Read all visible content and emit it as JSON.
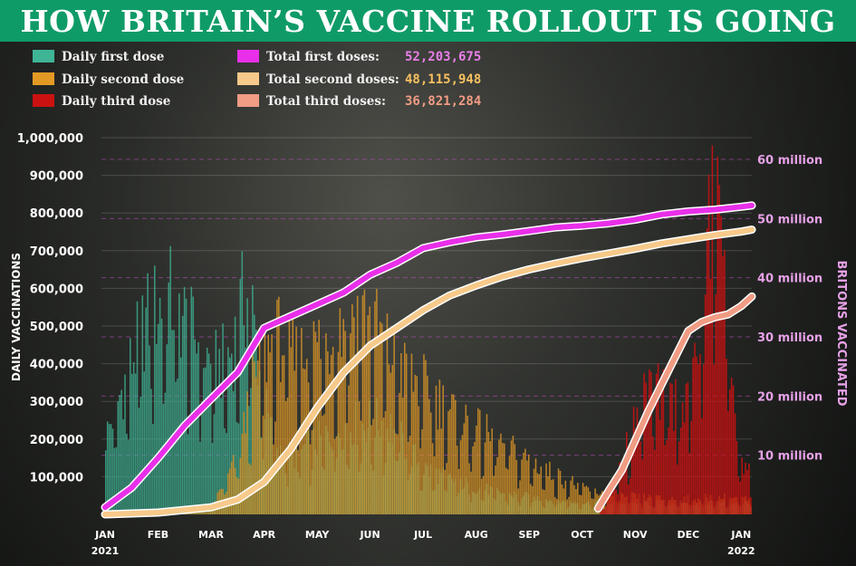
{
  "headline": "HOW BRITAIN’S VACCINE ROLLOUT IS GOING",
  "chart_data": {
    "type": "bar",
    "title": "HOW BRITAIN’S VACCINE ROLLOUT IS GOING",
    "ylabel": "DAILY VACCINATIONS",
    "y2label": "BRITONS VACCINATED",
    "ylim": [
      0,
      1000000
    ],
    "y2lim": [
      0,
      60000000
    ],
    "grid": true,
    "legend_position": "top-left",
    "y_ticks": [
      "1,000,000",
      "900,000",
      "800,000",
      "700,000",
      "600,000",
      "500,000",
      "400,000",
      "300,000",
      "200,000",
      "100,000"
    ],
    "y_tick_values": [
      1000000,
      900000,
      800000,
      700000,
      600000,
      500000,
      400000,
      300000,
      200000,
      100000
    ],
    "y2_ticks": [
      "60 million",
      "50 million",
      "40 million",
      "30 million",
      "20 million",
      "10 million"
    ],
    "y2_tick_values": [
      60000000,
      50000000,
      40000000,
      30000000,
      20000000,
      10000000
    ],
    "x_month_labels": [
      "JAN",
      "FEB",
      "MAR",
      "APR",
      "MAY",
      "JUN",
      "JUL",
      "AUG",
      "SEP",
      "OCT",
      "NOV",
      "DEC",
      "JAN"
    ],
    "x_year_labels": [
      "2021",
      "2022"
    ],
    "legend": [
      {
        "label": "Daily first dose",
        "color": "#3fb596"
      },
      {
        "label": "Daily second dose",
        "color": "#e39a25"
      },
      {
        "label": "Daily third dose",
        "color": "#cc1111"
      },
      {
        "label": "Total first doses:",
        "value": "52,203,675",
        "color": "#e92fe9",
        "value_color": "#e97fe9"
      },
      {
        "label": "Total second doses:",
        "value": "48,115,948",
        "color": "#f7c98a",
        "value_color": "#f7c060"
      },
      {
        "label": "Total third doses:",
        "value": "36,821,284",
        "color": "#f19c84",
        "value_color": "#f19c84"
      }
    ],
    "daily_first": [
      {
        "month": 0.0,
        "value": 200000
      },
      {
        "month": 0.3,
        "value": 320000
      },
      {
        "month": 0.5,
        "value": 400000
      },
      {
        "month": 0.75,
        "value": 500000
      },
      {
        "month": 1.0,
        "value": 540000
      },
      {
        "month": 1.2,
        "value": 560000
      },
      {
        "month": 1.4,
        "value": 530000
      },
      {
        "month": 1.6,
        "value": 470000
      },
      {
        "month": 1.8,
        "value": 440000
      },
      {
        "month": 2.0,
        "value": 380000
      },
      {
        "month": 2.2,
        "value": 390000
      },
      {
        "month": 2.4,
        "value": 430000
      },
      {
        "month": 2.6,
        "value": 560000
      },
      {
        "month": 2.75,
        "value": 540000
      },
      {
        "month": 3.0,
        "value": 280000
      },
      {
        "month": 3.2,
        "value": 180000
      },
      {
        "month": 3.5,
        "value": 150000
      },
      {
        "month": 4.0,
        "value": 190000
      },
      {
        "month": 4.5,
        "value": 230000
      },
      {
        "month": 5.0,
        "value": 240000
      },
      {
        "month": 5.3,
        "value": 240000
      },
      {
        "month": 5.7,
        "value": 170000
      },
      {
        "month": 6.0,
        "value": 120000
      },
      {
        "month": 6.5,
        "value": 90000
      },
      {
        "month": 7.0,
        "value": 70000
      },
      {
        "month": 7.5,
        "value": 55000
      },
      {
        "month": 8.0,
        "value": 45000
      },
      {
        "month": 8.5,
        "value": 35000
      },
      {
        "month": 9.0,
        "value": 30000
      },
      {
        "month": 9.5,
        "value": 28000
      },
      {
        "month": 10.0,
        "value": 28000
      },
      {
        "month": 10.5,
        "value": 30000
      },
      {
        "month": 11.0,
        "value": 28000
      },
      {
        "month": 11.5,
        "value": 30000
      },
      {
        "month": 12.0,
        "value": 30000
      },
      {
        "month": 12.2,
        "value": 25000
      }
    ],
    "daily_second": [
      {
        "month": 0.0,
        "value": 10000
      },
      {
        "month": 1.0,
        "value": 10000
      },
      {
        "month": 2.0,
        "value": 20000
      },
      {
        "month": 2.5,
        "value": 150000
      },
      {
        "month": 2.75,
        "value": 320000
      },
      {
        "month": 3.0,
        "value": 420000
      },
      {
        "month": 3.3,
        "value": 460000
      },
      {
        "month": 3.6,
        "value": 400000
      },
      {
        "month": 4.0,
        "value": 440000
      },
      {
        "month": 4.3,
        "value": 460000
      },
      {
        "month": 4.6,
        "value": 530000
      },
      {
        "month": 5.0,
        "value": 500000
      },
      {
        "month": 5.3,
        "value": 430000
      },
      {
        "month": 5.6,
        "value": 370000
      },
      {
        "month": 6.0,
        "value": 330000
      },
      {
        "month": 6.5,
        "value": 270000
      },
      {
        "month": 7.0,
        "value": 220000
      },
      {
        "month": 7.5,
        "value": 180000
      },
      {
        "month": 8.0,
        "value": 140000
      },
      {
        "month": 8.5,
        "value": 100000
      },
      {
        "month": 9.0,
        "value": 70000
      },
      {
        "month": 9.5,
        "value": 50000
      },
      {
        "month": 10.0,
        "value": 45000
      },
      {
        "month": 10.5,
        "value": 40000
      },
      {
        "month": 11.0,
        "value": 40000
      },
      {
        "month": 11.5,
        "value": 45000
      },
      {
        "month": 12.0,
        "value": 40000
      },
      {
        "month": 12.2,
        "value": 35000
      }
    ],
    "daily_third": [
      {
        "month": 0.0,
        "value": 0
      },
      {
        "month": 9.3,
        "value": 0
      },
      {
        "month": 9.5,
        "value": 60000
      },
      {
        "month": 9.75,
        "value": 140000
      },
      {
        "month": 10.0,
        "value": 250000
      },
      {
        "month": 10.25,
        "value": 330000
      },
      {
        "month": 10.5,
        "value": 300000
      },
      {
        "month": 10.75,
        "value": 290000
      },
      {
        "month": 11.0,
        "value": 320000
      },
      {
        "month": 11.2,
        "value": 450000
      },
      {
        "month": 11.35,
        "value": 700000
      },
      {
        "month": 11.5,
        "value": 860000
      },
      {
        "month": 11.65,
        "value": 800000
      },
      {
        "month": 11.8,
        "value": 300000
      },
      {
        "month": 12.0,
        "value": 150000
      },
      {
        "month": 12.2,
        "value": 90000
      }
    ],
    "total_first": [
      {
        "month": 0.0,
        "value": 1200000
      },
      {
        "month": 0.5,
        "value": 4500000
      },
      {
        "month": 1.0,
        "value": 9500000
      },
      {
        "month": 1.5,
        "value": 15000000
      },
      {
        "month": 2.0,
        "value": 19500000
      },
      {
        "month": 2.5,
        "value": 24000000
      },
      {
        "month": 3.0,
        "value": 31500000
      },
      {
        "month": 3.5,
        "value": 33500000
      },
      {
        "month": 4.0,
        "value": 35500000
      },
      {
        "month": 4.5,
        "value": 37500000
      },
      {
        "month": 5.0,
        "value": 40500000
      },
      {
        "month": 5.5,
        "value": 42500000
      },
      {
        "month": 6.0,
        "value": 45000000
      },
      {
        "month": 6.5,
        "value": 46000000
      },
      {
        "month": 7.0,
        "value": 46800000
      },
      {
        "month": 7.5,
        "value": 47300000
      },
      {
        "month": 8.0,
        "value": 47900000
      },
      {
        "month": 8.5,
        "value": 48500000
      },
      {
        "month": 9.0,
        "value": 48800000
      },
      {
        "month": 9.5,
        "value": 49200000
      },
      {
        "month": 10.0,
        "value": 49800000
      },
      {
        "month": 10.5,
        "value": 50700000
      },
      {
        "month": 11.0,
        "value": 51200000
      },
      {
        "month": 11.5,
        "value": 51500000
      },
      {
        "month": 12.0,
        "value": 52000000
      },
      {
        "month": 12.2,
        "value": 52203675
      }
    ],
    "total_second": [
      {
        "month": 0.0,
        "value": 0
      },
      {
        "month": 1.0,
        "value": 300000
      },
      {
        "month": 2.0,
        "value": 1200000
      },
      {
        "month": 2.5,
        "value": 2500000
      },
      {
        "month": 3.0,
        "value": 5500000
      },
      {
        "month": 3.5,
        "value": 11000000
      },
      {
        "month": 4.0,
        "value": 18000000
      },
      {
        "month": 4.5,
        "value": 24000000
      },
      {
        "month": 5.0,
        "value": 28500000
      },
      {
        "month": 5.5,
        "value": 31500000
      },
      {
        "month": 6.0,
        "value": 34500000
      },
      {
        "month": 6.5,
        "value": 37000000
      },
      {
        "month": 7.0,
        "value": 38700000
      },
      {
        "month": 7.5,
        "value": 40200000
      },
      {
        "month": 8.0,
        "value": 41400000
      },
      {
        "month": 8.5,
        "value": 42400000
      },
      {
        "month": 9.0,
        "value": 43300000
      },
      {
        "month": 9.5,
        "value": 44100000
      },
      {
        "month": 10.0,
        "value": 44900000
      },
      {
        "month": 10.5,
        "value": 45800000
      },
      {
        "month": 11.0,
        "value": 46500000
      },
      {
        "month": 11.5,
        "value": 47200000
      },
      {
        "month": 12.0,
        "value": 47800000
      },
      {
        "month": 12.2,
        "value": 48115948
      }
    ],
    "total_third": [
      {
        "month": 9.3,
        "value": 1000000
      },
      {
        "month": 9.5,
        "value": 4000000
      },
      {
        "month": 9.75,
        "value": 7500000
      },
      {
        "month": 10.0,
        "value": 12500000
      },
      {
        "month": 10.25,
        "value": 17500000
      },
      {
        "month": 10.5,
        "value": 22000000
      },
      {
        "month": 10.75,
        "value": 26500000
      },
      {
        "month": 11.0,
        "value": 31000000
      },
      {
        "month": 11.25,
        "value": 32500000
      },
      {
        "month": 11.5,
        "value": 33300000
      },
      {
        "month": 11.75,
        "value": 33800000
      },
      {
        "month": 12.0,
        "value": 35200000
      },
      {
        "month": 12.2,
        "value": 36821284
      }
    ]
  }
}
